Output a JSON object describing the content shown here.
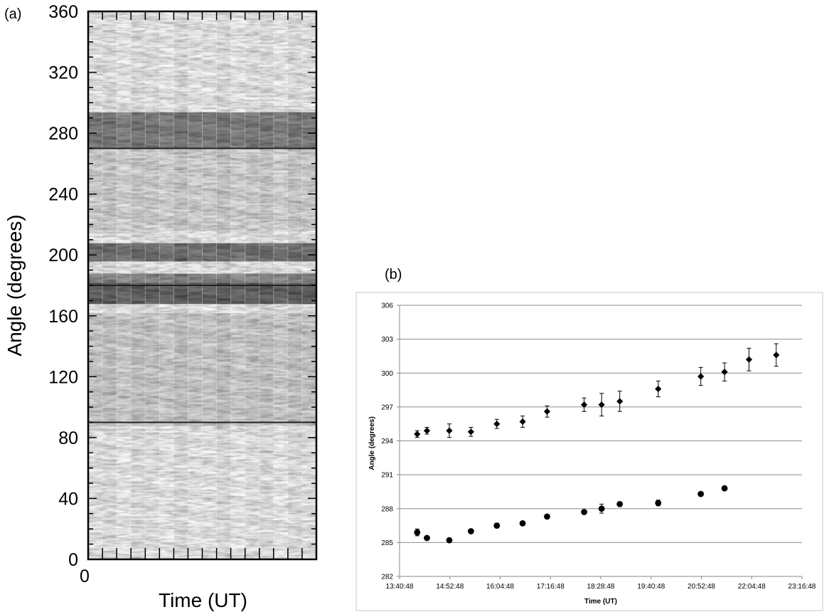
{
  "panel_a_label": "(a)",
  "panel_b_label": "(b)",
  "chart_data": [
    {
      "type": "heatmap",
      "ylabel": "Angle (degrees)",
      "xlabel": "Time (UT)",
      "x_tick_labels": [
        "0"
      ],
      "y_ticks": [
        0,
        40,
        80,
        120,
        160,
        200,
        240,
        280,
        320,
        360
      ],
      "ylim": [
        0,
        360
      ],
      "time_columns": 16,
      "grayscale": "light background with dark angular bands",
      "dark_bands_deg": [
        {
          "from": 168,
          "to": 180,
          "intensity": 0.72
        },
        {
          "from": 180,
          "to": 186,
          "intensity": 0.55
        },
        {
          "from": 196,
          "to": 207,
          "intensity": 0.65
        },
        {
          "from": 270,
          "to": 293,
          "intensity": 0.6
        },
        {
          "from": 88,
          "to": 160,
          "intensity": 0.25
        },
        {
          "from": 215,
          "to": 268,
          "intensity": 0.22
        }
      ],
      "reference_lines_deg": [
        90,
        180,
        270
      ]
    },
    {
      "type": "scatter",
      "xlabel": "Time (UT)",
      "ylabel": "Angle (degrees)",
      "x_tick_labels": [
        "13:40:48",
        "14:52:48",
        "16:04:48",
        "17:16:48",
        "18:28:48",
        "19:40:48",
        "20:52:48",
        "22:04:48",
        "23:16:48"
      ],
      "ylim": [
        282,
        306
      ],
      "y_ticks": [
        282,
        285,
        288,
        291,
        294,
        297,
        300,
        303,
        306
      ],
      "grid": "horizontal",
      "series": [
        {
          "marker": "diamond",
          "points": [
            {
              "t": "14:06",
              "y": 294.6,
              "err": 0.3
            },
            {
              "t": "14:20",
              "y": 294.9,
              "err": 0.3
            },
            {
              "t": "14:52",
              "y": 294.9,
              "err": 0.6
            },
            {
              "t": "15:23",
              "y": 294.8,
              "err": 0.4
            },
            {
              "t": "16:00",
              "y": 295.5,
              "err": 0.4
            },
            {
              "t": "16:37",
              "y": 295.7,
              "err": 0.5
            },
            {
              "t": "17:12",
              "y": 296.6,
              "err": 0.5
            },
            {
              "t": "18:05",
              "y": 297.2,
              "err": 0.6
            },
            {
              "t": "18:30",
              "y": 297.2,
              "err": 1.0
            },
            {
              "t": "18:56",
              "y": 297.5,
              "err": 0.9
            },
            {
              "t": "19:51",
              "y": 298.6,
              "err": 0.7
            },
            {
              "t": "20:52",
              "y": 299.7,
              "err": 0.8
            },
            {
              "t": "21:26",
              "y": 300.1,
              "err": 0.8
            },
            {
              "t": "22:01",
              "y": 301.2,
              "err": 1.0
            },
            {
              "t": "22:40",
              "y": 301.6,
              "err": 1.0
            }
          ]
        },
        {
          "marker": "circle",
          "points": [
            {
              "t": "14:06",
              "y": 285.9,
              "err": 0.3
            },
            {
              "t": "14:20",
              "y": 285.4,
              "err": 0.15
            },
            {
              "t": "14:52",
              "y": 285.2,
              "err": 0.1
            },
            {
              "t": "15:23",
              "y": 286.0,
              "err": 0.1
            },
            {
              "t": "16:00",
              "y": 286.5,
              "err": 0.2
            },
            {
              "t": "16:37",
              "y": 286.7,
              "err": 0.1
            },
            {
              "t": "17:12",
              "y": 287.3,
              "err": 0.1
            },
            {
              "t": "18:05",
              "y": 287.7,
              "err": 0.1
            },
            {
              "t": "18:30",
              "y": 288.0,
              "err": 0.4
            },
            {
              "t": "18:56",
              "y": 288.4,
              "err": 0.1
            },
            {
              "t": "19:51",
              "y": 288.5,
              "err": 0.25
            },
            {
              "t": "20:52",
              "y": 289.3,
              "err": 0.1
            },
            {
              "t": "21:26",
              "y": 289.8,
              "err": 0.1
            }
          ]
        }
      ]
    }
  ]
}
